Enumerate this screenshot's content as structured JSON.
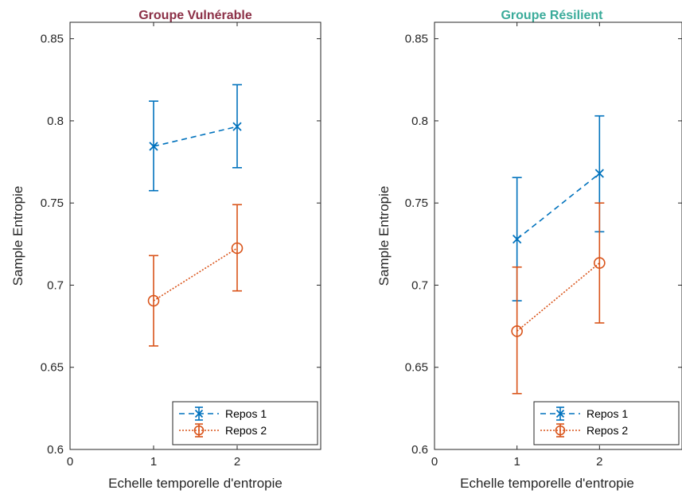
{
  "chart_data": [
    {
      "type": "line",
      "title": "Groupe Vulnérable",
      "title_color": "#8b2f46",
      "xlabel": "Echelle temporelle d'entropie",
      "ylabel": "Sample Entropie",
      "xlim": [
        0,
        3
      ],
      "ylim": [
        0.6,
        0.86
      ],
      "xticks": [
        0,
        1,
        2
      ],
      "yticks": [
        0.6,
        0.65,
        0.7,
        0.75,
        0.8,
        0.85
      ],
      "ytick_labels": [
        "0.6",
        "0.65",
        "0.7",
        "0.75",
        "0.8",
        "0.85"
      ],
      "legend_position": "bottom-right",
      "series": [
        {
          "name": "Repos 1",
          "color": "#0072bd",
          "line": "dashed",
          "marker": "x",
          "x": [
            1,
            2
          ],
          "y": [
            0.7845,
            0.7965
          ],
          "err_low": [
            0.7575,
            0.7715
          ],
          "err_high": [
            0.812,
            0.822
          ]
        },
        {
          "name": "Repos 2",
          "color": "#d95319",
          "line": "dotted",
          "marker": "o",
          "x": [
            1,
            2
          ],
          "y": [
            0.6905,
            0.7225
          ],
          "err_low": [
            0.663,
            0.6965
          ],
          "err_high": [
            0.718,
            0.749
          ]
        }
      ]
    },
    {
      "type": "line",
      "title": "Groupe Résilient",
      "title_color": "#3aab9a",
      "xlabel": "Echelle temporelle d'entropie",
      "ylabel": "Sample Entropie",
      "xlim": [
        0,
        3
      ],
      "ylim": [
        0.6,
        0.86
      ],
      "xticks": [
        0,
        1,
        2
      ],
      "yticks": [
        0.6,
        0.65,
        0.7,
        0.75,
        0.8,
        0.85
      ],
      "ytick_labels": [
        "0.6",
        "0.65",
        "0.7",
        "0.75",
        "0.8",
        "0.85"
      ],
      "legend_position": "bottom-right",
      "series": [
        {
          "name": "Repos 1",
          "color": "#0072bd",
          "line": "dashed",
          "marker": "x",
          "x": [
            1,
            2
          ],
          "y": [
            0.728,
            0.768
          ],
          "err_low": [
            0.6905,
            0.7325
          ],
          "err_high": [
            0.7655,
            0.803
          ]
        },
        {
          "name": "Repos 2",
          "color": "#d95319",
          "line": "dotted",
          "marker": "o",
          "x": [
            1,
            2
          ],
          "y": [
            0.672,
            0.7135
          ],
          "err_low": [
            0.634,
            0.677
          ],
          "err_high": [
            0.711,
            0.75
          ]
        }
      ]
    }
  ]
}
